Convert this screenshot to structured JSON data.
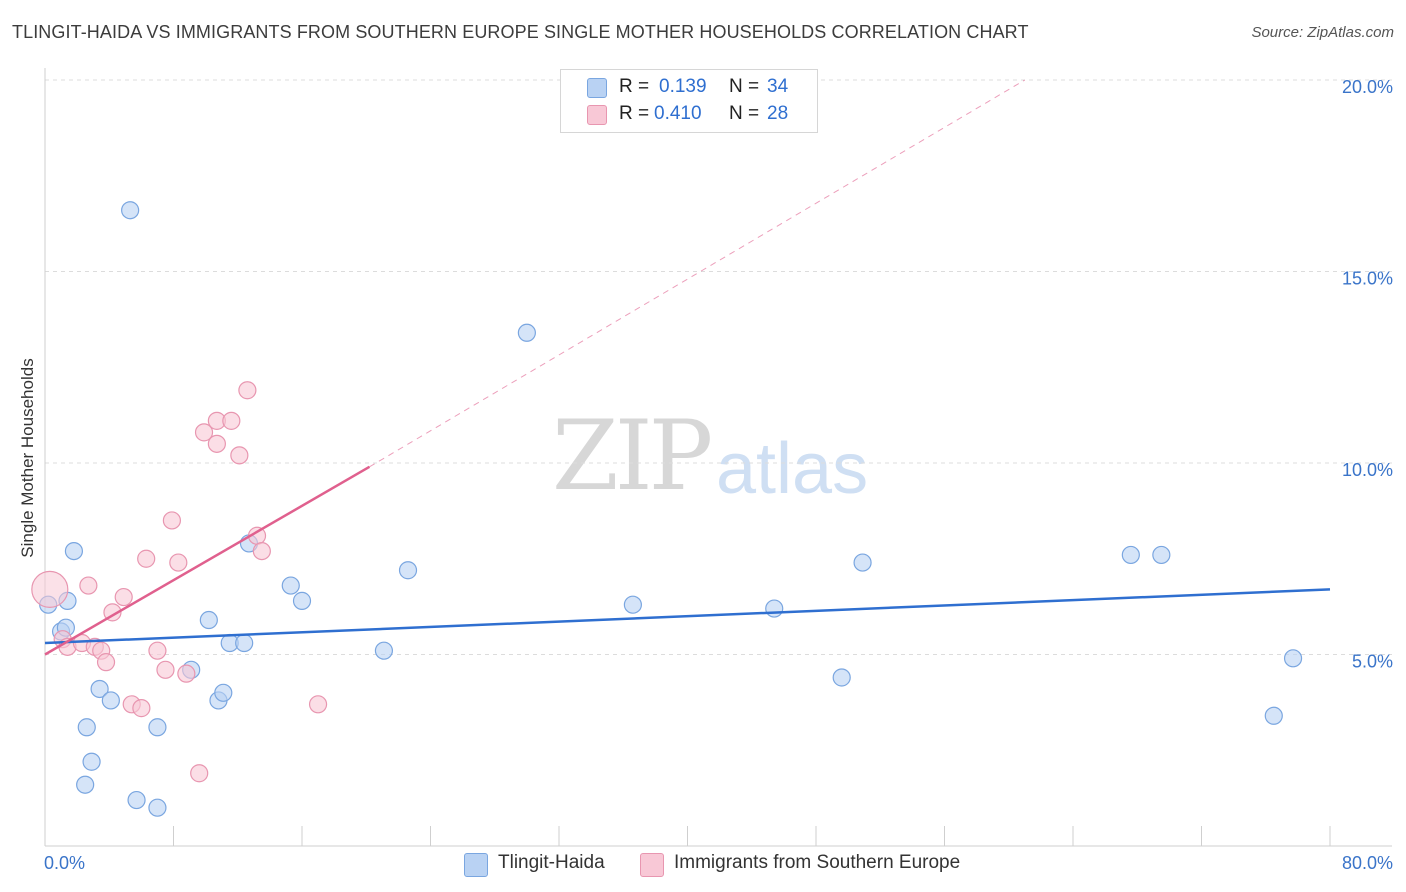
{
  "title": "TLINGIT-HAIDA VS IMMIGRANTS FROM SOUTHERN EUROPE SINGLE MOTHER HOUSEHOLDS CORRELATION CHART",
  "source": "Source: ZipAtlas.com",
  "watermark": {
    "zip": "ZIP",
    "atlas": "atlas"
  },
  "legend": {
    "rows": [
      {
        "r_label": "R =",
        "r_value": "0.139",
        "n_label": "N =",
        "n_value": "34",
        "color": "#b9d2f3",
        "border": "#7aa6e0"
      },
      {
        "r_label": "R =",
        "r_value": "0.410",
        "n_label": "N =",
        "n_value": "28",
        "color": "#f8c8d6",
        "border": "#e896b0"
      }
    ]
  },
  "bottom_legend": [
    {
      "label": "Tlingit-Haida",
      "color": "#b9d2f3",
      "border": "#7aa6e0"
    },
    {
      "label": "Immigrants from Southern Europe",
      "color": "#f8c8d6",
      "border": "#e896b0"
    }
  ],
  "chart_data": {
    "type": "scatter",
    "title": "TLINGIT-HAIDA VS IMMIGRANTS FROM SOUTHERN EUROPE SINGLE MOTHER HOUSEHOLDS CORRELATION CHART",
    "xlabel": "",
    "ylabel": "Single Mother Households",
    "xlim": [
      0,
      80
    ],
    "ylim": [
      0,
      20
    ],
    "x_tick_labels": [
      "0.0%",
      "80.0%"
    ],
    "y_ticks": [
      5,
      10,
      15,
      20
    ],
    "y_tick_labels": [
      "5.0%",
      "10.0%",
      "15.0%",
      "20.0%"
    ],
    "grid": true,
    "legend_position": "top-center",
    "series": [
      {
        "name": "Tlingit-Haida",
        "color": "#7aa6e0",
        "fill": "#b9d2f3",
        "trend_color": "#2f6fd0",
        "trend": {
          "x": [
            0,
            80
          ],
          "y": [
            5.3,
            6.7
          ]
        },
        "points": [
          [
            0.2,
            6.3
          ],
          [
            1.0,
            5.6
          ],
          [
            1.3,
            5.7
          ],
          [
            1.4,
            6.4
          ],
          [
            1.8,
            7.7
          ],
          [
            2.5,
            1.6
          ],
          [
            2.6,
            3.1
          ],
          [
            2.9,
            2.2
          ],
          [
            3.4,
            4.1
          ],
          [
            4.1,
            3.8
          ],
          [
            5.3,
            16.6
          ],
          [
            5.7,
            1.2
          ],
          [
            7.0,
            3.1
          ],
          [
            7.0,
            1.0
          ],
          [
            9.1,
            4.6
          ],
          [
            10.2,
            5.9
          ],
          [
            10.8,
            3.8
          ],
          [
            11.1,
            4.0
          ],
          [
            11.5,
            5.3
          ],
          [
            12.4,
            5.3
          ],
          [
            12.7,
            7.9
          ],
          [
            15.3,
            6.8
          ],
          [
            16.0,
            6.4
          ],
          [
            21.1,
            5.1
          ],
          [
            22.6,
            7.2
          ],
          [
            30.0,
            13.4
          ],
          [
            36.6,
            6.3
          ],
          [
            45.4,
            6.2
          ],
          [
            49.6,
            4.4
          ],
          [
            50.9,
            7.4
          ],
          [
            67.6,
            7.6
          ],
          [
            69.5,
            7.6
          ],
          [
            76.5,
            3.4
          ],
          [
            77.7,
            4.9
          ]
        ]
      },
      {
        "name": "Immigrants from Southern Europe",
        "color": "#e896b0",
        "fill": "#f8c8d6",
        "trend_color": "#e0608e",
        "trend": {
          "x": [
            0,
            20.2
          ],
          "y": [
            5.0,
            9.9
          ]
        },
        "trend_extension": {
          "x": [
            20.2,
            61
          ],
          "y": [
            9.9,
            20.0
          ]
        },
        "points": [
          [
            0.3,
            6.7
          ],
          [
            1.1,
            5.4
          ],
          [
            1.4,
            5.2
          ],
          [
            2.3,
            5.3
          ],
          [
            2.7,
            6.8
          ],
          [
            3.1,
            5.2
          ],
          [
            3.5,
            5.1
          ],
          [
            3.8,
            4.8
          ],
          [
            4.2,
            6.1
          ],
          [
            4.9,
            6.5
          ],
          [
            5.4,
            3.7
          ],
          [
            6.0,
            3.6
          ],
          [
            6.3,
            7.5
          ],
          [
            7.0,
            5.1
          ],
          [
            7.5,
            4.6
          ],
          [
            7.9,
            8.5
          ],
          [
            8.3,
            7.4
          ],
          [
            8.8,
            4.5
          ],
          [
            9.6,
            1.9
          ],
          [
            9.9,
            10.8
          ],
          [
            10.7,
            10.5
          ],
          [
            10.7,
            11.1
          ],
          [
            11.6,
            11.1
          ],
          [
            12.1,
            10.2
          ],
          [
            12.6,
            11.9
          ],
          [
            13.2,
            8.1
          ],
          [
            13.5,
            7.7
          ],
          [
            17.0,
            3.7
          ]
        ]
      }
    ]
  }
}
